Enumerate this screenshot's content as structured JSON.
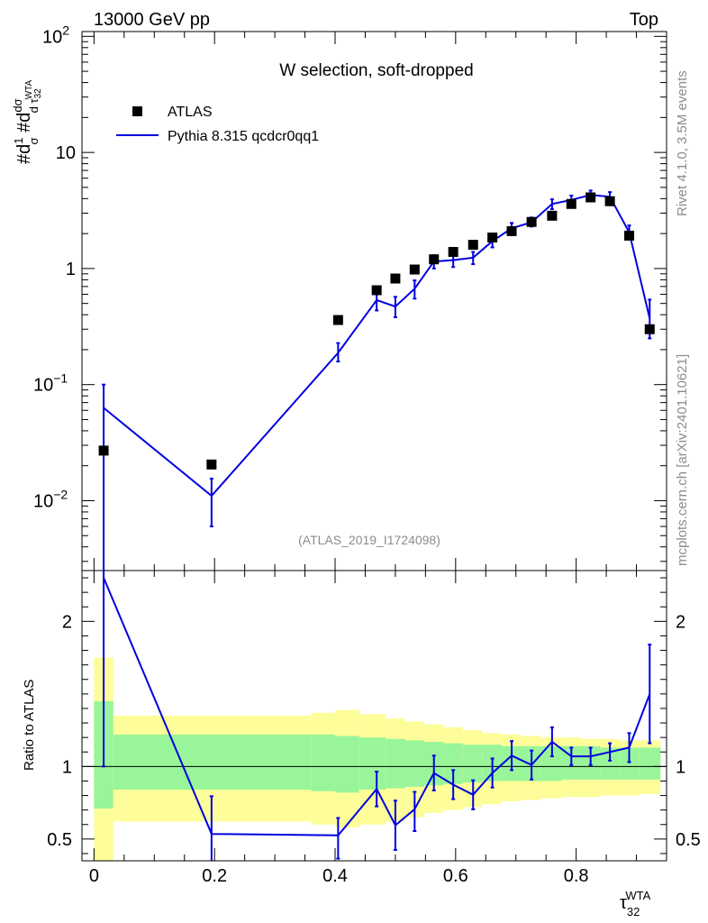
{
  "header": {
    "left": "13000 GeV pp",
    "right": "Top"
  },
  "side_text": {
    "rivet": "Rivet 4.1.0,  3.5M events",
    "source": "mcplots.cern.ch [arXiv:2401.10621]"
  },
  "watermark": "(ATLAS_2019_I1724098)",
  "colors": {
    "mc": "#0000e0",
    "band_inner": "#99f599",
    "band_outer": "#fdfd99",
    "data": "#000000"
  },
  "chart_data": [
    {
      "type": "scatter",
      "panel": "main",
      "title": "W selection, soft-dropped",
      "xlabel": "τ32 WTA",
      "ylabel": "#d1/σ #d dσ/d τ32 WTA",
      "yscale": "log",
      "xlim": [
        -0.02,
        0.95
      ],
      "ylim": [
        0.0025,
        110
      ],
      "y_ticks": [
        {
          "base": "10",
          "exp": "−2",
          "value": 0.01
        },
        {
          "base": "10",
          "exp": "−1",
          "value": 0.1
        },
        {
          "base": "1",
          "exp": "",
          "value": 1
        },
        {
          "base": "10",
          "exp": "",
          "value": 10
        },
        {
          "base": "10",
          "exp": "2",
          "value": 100
        }
      ],
      "legend": {
        "position": "top-left",
        "entries": [
          "ATLAS",
          "Pythia 8.315 qcdcr0qq1"
        ]
      },
      "series": [
        {
          "name": "ATLAS",
          "x": [
            0.016,
            0.195,
            0.405,
            0.469,
            0.5,
            0.532,
            0.564,
            0.596,
            0.629,
            0.661,
            0.693,
            0.726,
            0.76,
            0.792,
            0.824,
            0.856,
            0.888,
            0.922
          ],
          "y": [
            0.027,
            0.0205,
            0.36,
            0.65,
            0.82,
            0.98,
            1.2,
            1.39,
            1.6,
            1.85,
            2.1,
            2.52,
            2.85,
            3.6,
            4.1,
            3.8,
            1.92,
            0.3
          ]
        },
        {
          "name": "Pythia 8.315 qcdcr0qq1",
          "x": [
            0.016,
            0.195,
            0.405,
            0.469,
            0.5,
            0.532,
            0.564,
            0.596,
            0.629,
            0.661,
            0.693,
            0.726,
            0.76,
            0.792,
            0.824,
            0.856,
            0.888,
            0.922
          ],
          "y": [
            0.063,
            0.011,
            0.188,
            0.535,
            0.47,
            0.67,
            1.15,
            1.18,
            1.24,
            1.72,
            2.22,
            2.5,
            3.6,
            3.9,
            4.3,
            4.15,
            2.05,
            0.37
          ],
          "yerr_low": [
            0.063,
            0.005,
            0.03,
            0.1,
            0.09,
            0.12,
            0.15,
            0.15,
            0.15,
            0.2,
            0.25,
            0.2,
            0.35,
            0.35,
            0.4,
            0.4,
            0.25,
            0.12
          ],
          "yerr_high": [
            0.037,
            0.0045,
            0.04,
            0.1,
            0.1,
            0.12,
            0.15,
            0.15,
            0.15,
            0.2,
            0.25,
            0.25,
            0.35,
            0.35,
            0.4,
            0.4,
            0.3,
            0.17
          ]
        }
      ]
    },
    {
      "type": "line",
      "panel": "ratio",
      "ylabel": "Ratio to ATLAS",
      "xlabel": "τ32 WTA",
      "xlim": [
        -0.02,
        0.95
      ],
      "ylim": [
        0.35,
        2.35
      ],
      "x_ticks": [
        0,
        0.2,
        0.4,
        0.6,
        0.8
      ],
      "x_tick_labels": [
        "0",
        "0.2",
        "0.4",
        "0.6",
        "0.8"
      ],
      "y_ticks": [
        0.5,
        1,
        2
      ],
      "y_tick_labels": [
        "0.5",
        "1",
        "2"
      ],
      "bands": {
        "edges": [
          0.0,
          0.032,
          0.36,
          0.4,
          0.44,
          0.484,
          0.516,
          0.548,
          0.58,
          0.612,
          0.644,
          0.676,
          0.708,
          0.742,
          0.776,
          0.808,
          0.84,
          0.872,
          0.904,
          0.94
        ],
        "outer_low": [
          0.3,
          0.62,
          0.6,
          0.58,
          0.6,
          0.62,
          0.65,
          0.68,
          0.7,
          0.72,
          0.74,
          0.76,
          0.77,
          0.78,
          0.79,
          0.79,
          0.8,
          0.8,
          0.81
        ],
        "outer_high": [
          1.75,
          1.35,
          1.37,
          1.39,
          1.36,
          1.33,
          1.31,
          1.29,
          1.27,
          1.25,
          1.23,
          1.22,
          1.21,
          1.2,
          1.2,
          1.19,
          1.19,
          1.18,
          1.18
        ],
        "inner_low": [
          0.71,
          0.84,
          0.83,
          0.82,
          0.84,
          0.85,
          0.86,
          0.87,
          0.88,
          0.89,
          0.9,
          0.9,
          0.9,
          0.9,
          0.91,
          0.91,
          0.91,
          0.91,
          0.91
        ],
        "inner_high": [
          1.45,
          1.22,
          1.22,
          1.21,
          1.2,
          1.19,
          1.18,
          1.17,
          1.16,
          1.15,
          1.15,
          1.14,
          1.14,
          1.14,
          1.14,
          1.14,
          1.13,
          1.13,
          1.13
        ]
      },
      "series": [
        {
          "name": "Pythia 8.315 qcdcr0qq1 / ATLAS",
          "x": [
            0.016,
            0.195,
            0.405,
            0.469,
            0.5,
            0.532,
            0.564,
            0.596,
            0.629,
            0.661,
            0.693,
            0.726,
            0.76,
            0.792,
            0.824,
            0.856,
            0.888,
            0.922
          ],
          "y": [
            2.3,
            0.535,
            0.525,
            0.845,
            0.595,
            0.705,
            0.955,
            0.875,
            0.805,
            0.955,
            1.075,
            1.01,
            1.17,
            1.07,
            1.07,
            1.1,
            1.13,
            1.5
          ],
          "yerr_low": [
            1.3,
            0.2,
            0.16,
            0.12,
            0.17,
            0.15,
            0.12,
            0.1,
            0.1,
            0.1,
            0.1,
            0.1,
            0.1,
            0.06,
            0.06,
            0.06,
            0.1,
            0.34
          ],
          "yerr_high": [
            0.3,
            0.26,
            0.12,
            0.12,
            0.17,
            0.12,
            0.12,
            0.1,
            0.1,
            0.1,
            0.1,
            0.1,
            0.1,
            0.06,
            0.06,
            0.06,
            0.1,
            0.34
          ]
        }
      ]
    }
  ]
}
